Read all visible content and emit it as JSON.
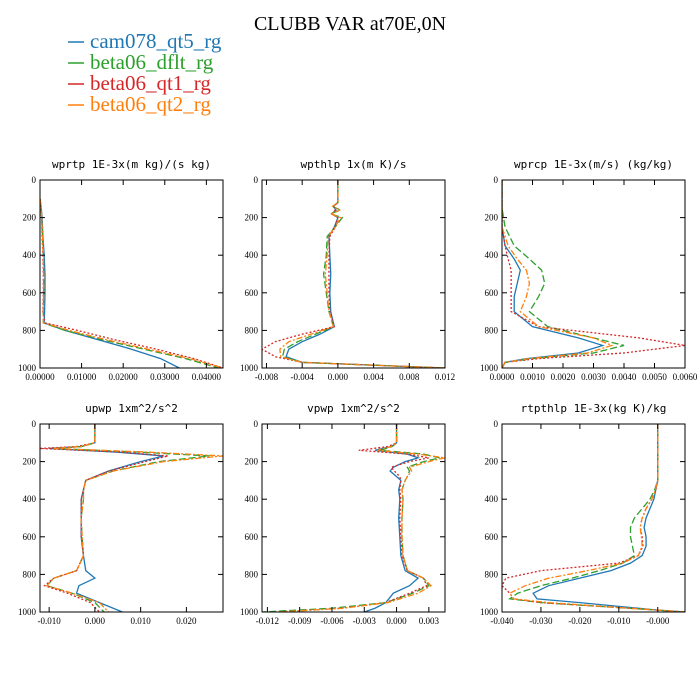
{
  "title": "CLUBB VAR at70E,0N",
  "legend": [
    {
      "name": "cam078_qt5_rg",
      "color": "#1f77b4"
    },
    {
      "name": "beta06_dflt_rg",
      "color": "#2ca02c"
    },
    {
      "name": "beta06_qt1_rg",
      "color": "#d62728"
    },
    {
      "name": "beta06_qt2_rg",
      "color": "#ff7f0e"
    }
  ],
  "chart_data": [
    {
      "type": "line",
      "title": "wprtp  1E-3x(m kg)/(s kg)",
      "xlim": [
        0,
        0.044
      ],
      "ylim": [
        1000,
        0
      ],
      "xticks": [
        0,
        0.01,
        0.02,
        0.03,
        0.04
      ],
      "xtick_labels": [
        "0.00000",
        "0.01000",
        "0.02000",
        "0.03000",
        "0.04000"
      ],
      "yticks": [
        0,
        200,
        400,
        600,
        800,
        1000
      ],
      "ytick_labels": [
        "0",
        "200",
        "400",
        "600",
        "800",
        "1000"
      ],
      "y": [
        100,
        150,
        200,
        300,
        400,
        500,
        600,
        700,
        760,
        800,
        850,
        900,
        950,
        1000
      ],
      "series": [
        {
          "name": "cam078_qt5_rg",
          "values": [
            0,
            0.0003,
            0.0005,
            0.0007,
            0.001,
            0.0012,
            0.0012,
            0.0011,
            0.001,
            0.006,
            0.014,
            0.022,
            0.029,
            0.0335
          ]
        },
        {
          "name": "beta06_dflt_rg",
          "values": [
            0,
            0.0003,
            0.0004,
            0.0006,
            0.0008,
            0.0009,
            0.0009,
            0.0008,
            0.0008,
            0.006,
            0.015,
            0.025,
            0.035,
            0.043
          ]
        },
        {
          "name": "beta06_qt1_rg",
          "values": [
            0,
            0.0002,
            0.0004,
            0.0005,
            0.0007,
            0.0008,
            0.0008,
            0.0007,
            0.0012,
            0.009,
            0.018,
            0.028,
            0.037,
            0.044
          ]
        },
        {
          "name": "beta06_qt2_rg",
          "values": [
            0,
            0.0003,
            0.0004,
            0.0006,
            0.0008,
            0.0009,
            0.0009,
            0.0008,
            0.0008,
            0.007,
            0.016,
            0.026,
            0.036,
            0.044
          ]
        }
      ]
    },
    {
      "type": "line",
      "title": "wpthlp  1x(m K)/s",
      "xlim": [
        -0.0085,
        0.012
      ],
      "ylim": [
        1000,
        0
      ],
      "xticks": [
        -0.008,
        -0.004,
        0,
        0.004,
        0.008,
        0.012
      ],
      "xtick_labels": [
        "-0.008",
        "-0.004",
        "0.000",
        "0.004",
        "0.008",
        "0.012"
      ],
      "yticks": [
        0,
        200,
        400,
        600,
        800,
        1000
      ],
      "ytick_labels": [
        "0",
        "200",
        "400",
        "600",
        "800",
        "1000"
      ],
      "y": [
        0,
        120,
        140,
        160,
        180,
        200,
        250,
        300,
        400,
        500,
        600,
        700,
        780,
        820,
        860,
        900,
        940,
        970,
        985,
        1000
      ],
      "series": [
        {
          "name": "cam078_qt5_rg",
          "values": [
            0,
            0,
            -0.0005,
            -0.0002,
            -0.0007,
            0,
            -0.0004,
            -0.001,
            -0.0009,
            -0.0008,
            -0.0009,
            -0.0008,
            -0.0004,
            -0.002,
            -0.004,
            -0.0055,
            -0.0058,
            -0.004,
            0.004,
            0.012
          ]
        },
        {
          "name": "beta06_dflt_rg",
          "values": [
            0,
            0,
            -0.0006,
            0.0003,
            -0.0008,
            0.0005,
            -0.0003,
            -0.0012,
            -0.0013,
            -0.0016,
            -0.0013,
            -0.001,
            -0.0005,
            -0.0025,
            -0.0045,
            -0.006,
            -0.0062,
            -0.004,
            0.004,
            0.012
          ]
        },
        {
          "name": "beta06_qt1_rg",
          "values": [
            0,
            0,
            -0.0005,
            -0.0003,
            -0.0007,
            0,
            -0.0003,
            -0.0009,
            -0.001,
            -0.001,
            -0.001,
            -0.0009,
            -0.0004,
            -0.004,
            -0.007,
            -0.0085,
            -0.007,
            -0.004,
            0.004,
            0.012
          ]
        },
        {
          "name": "beta06_qt2_rg",
          "values": [
            0,
            0,
            -0.0006,
            0.0002,
            -0.0008,
            0.0003,
            -0.0003,
            -0.0011,
            -0.0012,
            -0.0014,
            -0.0012,
            -0.001,
            -0.0005,
            -0.003,
            -0.0055,
            -0.0065,
            -0.0064,
            -0.004,
            0.004,
            0.012
          ]
        }
      ]
    },
    {
      "type": "line",
      "title": "wprcp  1E-3x(m/s) (kg/kg)",
      "xlim": [
        0,
        0.006
      ],
      "ylim": [
        1000,
        0
      ],
      "xticks": [
        0,
        0.001,
        0.002,
        0.003,
        0.004,
        0.005,
        0.006
      ],
      "xtick_labels": [
        "0.0000",
        "0.0010",
        "0.0020",
        "0.0030",
        "0.0040",
        "0.0050",
        "0.0060"
      ],
      "yticks": [
        0,
        200,
        400,
        600,
        800,
        1000
      ],
      "ytick_labels": [
        "0",
        "200",
        "400",
        "600",
        "800",
        "1000"
      ],
      "y": [
        0,
        150,
        250,
        350,
        420,
        480,
        550,
        620,
        700,
        780,
        840,
        880,
        920,
        950,
        970,
        1000
      ],
      "series": [
        {
          "name": "cam078_qt5_rg",
          "values": [
            0,
            0,
            0,
            0.0001,
            0.0004,
            0.0006,
            0.0005,
            0.0004,
            0.0004,
            0.001,
            0.0025,
            0.0033,
            0.0025,
            0.0008,
            0.0001,
            0
          ]
        },
        {
          "name": "beta06_dflt_rg",
          "values": [
            0,
            0,
            0.0001,
            0.0004,
            0.0009,
            0.0013,
            0.0014,
            0.0012,
            0.0009,
            0.0015,
            0.003,
            0.004,
            0.003,
            0.001,
            0.0001,
            0
          ]
        },
        {
          "name": "beta06_qt1_rg",
          "values": [
            0,
            0,
            0,
            0.0001,
            0.0002,
            0.0003,
            0.0003,
            0.0003,
            0.0003,
            0.0012,
            0.0045,
            0.006,
            0.004,
            0.0012,
            0.0001,
            0
          ]
        },
        {
          "name": "beta06_qt2_rg",
          "values": [
            0,
            0,
            0,
            0.0002,
            0.0005,
            0.0008,
            0.0009,
            0.0008,
            0.0006,
            0.0012,
            0.003,
            0.0036,
            0.0028,
            0.0009,
            0.0001,
            0
          ]
        }
      ]
    },
    {
      "type": "line",
      "title": "upwp  1xm^2/s^2",
      "xlim": [
        -0.012,
        0.028
      ],
      "ylim": [
        1000,
        0
      ],
      "xticks": [
        -0.01,
        0,
        0.01,
        0.02
      ],
      "xtick_labels": [
        "-0.010",
        "0.000",
        "0.010",
        "0.020"
      ],
      "yticks": [
        0,
        200,
        400,
        600,
        800,
        1000
      ],
      "ytick_labels": [
        "0",
        "200",
        "400",
        "600",
        "800",
        "1000"
      ],
      "y": [
        0,
        100,
        120,
        130,
        150,
        170,
        200,
        250,
        300,
        350,
        400,
        500,
        600,
        700,
        780,
        820,
        860,
        900,
        950,
        1000
      ],
      "series": [
        {
          "name": "cam078_qt5_rg",
          "values": [
            0,
            0,
            -0.003,
            -0.01,
            0.005,
            0.015,
            0.01,
            0.003,
            -0.002,
            -0.0025,
            -0.003,
            -0.003,
            -0.003,
            -0.0025,
            -0.002,
            0,
            -0.0035,
            -0.004,
            0.001,
            0.006
          ]
        },
        {
          "name": "beta06_dflt_rg",
          "values": [
            0,
            0,
            -0.003,
            -0.009,
            0.01,
            0.025,
            0.014,
            0.004,
            -0.002,
            -0.0025,
            -0.0025,
            -0.003,
            -0.0028,
            -0.0025,
            -0.004,
            -0.009,
            -0.0105,
            -0.005,
            0,
            0.002
          ]
        },
        {
          "name": "beta06_qt1_rg",
          "values": [
            0,
            0,
            -0.004,
            -0.012,
            0.006,
            0.016,
            0.011,
            0.003,
            -0.002,
            -0.0025,
            -0.003,
            -0.003,
            -0.003,
            -0.0025,
            -0.004,
            -0.009,
            -0.011,
            -0.006,
            -0.001,
            0.001
          ]
        },
        {
          "name": "beta06_qt2_rg",
          "values": [
            0,
            0,
            -0.003,
            -0.009,
            0.012,
            0.028,
            0.015,
            0.004,
            -0.002,
            -0.0025,
            -0.0025,
            -0.003,
            -0.0028,
            -0.0025,
            -0.004,
            -0.009,
            -0.0105,
            -0.005,
            0.001,
            0.003
          ]
        }
      ]
    },
    {
      "type": "line",
      "title": "vpwp  1xm^2/s^2",
      "xlim": [
        -0.0125,
        0.0045
      ],
      "ylim": [
        1000,
        0
      ],
      "xticks": [
        -0.012,
        -0.009,
        -0.006,
        -0.003,
        0,
        0.003
      ],
      "xtick_labels": [
        "-0.012",
        "-0.009",
        "-0.006",
        "-0.003",
        "0.000",
        "0.003"
      ],
      "yticks": [
        0,
        200,
        400,
        600,
        800,
        1000
      ],
      "ytick_labels": [
        "0",
        "200",
        "400",
        "600",
        "800",
        "1000"
      ],
      "y": [
        0,
        100,
        120,
        140,
        160,
        180,
        200,
        230,
        250,
        280,
        300,
        350,
        400,
        500,
        600,
        700,
        780,
        820,
        860,
        900,
        950,
        980,
        1000
      ],
      "series": [
        {
          "name": "cam078_qt5_rg",
          "values": [
            0,
            0,
            -0.0005,
            -0.002,
            0.001,
            0.002,
            0.0008,
            -0.0003,
            -0.0006,
            0,
            0.0004,
            0.0002,
            0.0003,
            0.0002,
            0.0003,
            0.0004,
            0.0008,
            0.002,
            0.0012,
            -0.0003,
            -0.001,
            -0.002,
            -0.003
          ]
        },
        {
          "name": "beta06_dflt_rg",
          "values": [
            0,
            0,
            -0.0004,
            -0.0015,
            0.0025,
            0.004,
            0.0025,
            0.001,
            0.0012,
            0.001,
            0.0008,
            0.0005,
            0.0006,
            0.0005,
            0.0005,
            0.0006,
            0.001,
            0.0025,
            0.003,
            0.0015,
            -0.001,
            -0.006,
            -0.0125
          ]
        },
        {
          "name": "beta06_qt1_rg",
          "values": [
            0,
            0,
            -0.0008,
            -0.0035,
            0.001,
            0.003,
            0.0012,
            -0.0005,
            -0.0002,
            0.0003,
            0.0004,
            0.0003,
            0.0004,
            0.0003,
            0.0004,
            0.0005,
            0.001,
            0.0025,
            0.0028,
            0.0012,
            -0.001,
            -0.005,
            -0.011
          ]
        },
        {
          "name": "beta06_qt2_rg",
          "values": [
            0,
            0,
            -0.0005,
            -0.0018,
            0.002,
            0.0045,
            0.003,
            0.0012,
            0.0014,
            0.001,
            0.0008,
            0.0005,
            0.0006,
            0.0005,
            0.0005,
            0.0006,
            0.001,
            0.0025,
            0.0032,
            0.002,
            -0.0008,
            -0.005,
            -0.011
          ]
        }
      ]
    },
    {
      "type": "line",
      "title": "rtpthlp  1E-3x(kg K)/kg",
      "xlim": [
        -0.04,
        0.007
      ],
      "ylim": [
        1000,
        0
      ],
      "xticks": [
        -0.04,
        -0.03,
        -0.02,
        -0.01,
        0
      ],
      "xtick_labels": [
        "-0.040",
        "-0.030",
        "-0.020",
        "-0.010",
        "-0.000"
      ],
      "yticks": [
        0,
        200,
        400,
        600,
        800,
        1000
      ],
      "ytick_labels": [
        "0",
        "200",
        "400",
        "600",
        "800",
        "1000"
      ],
      "y": [
        0,
        300,
        350,
        400,
        450,
        500,
        550,
        600,
        650,
        700,
        740,
        780,
        820,
        860,
        900,
        930,
        950,
        970,
        990,
        1000
      ],
      "series": [
        {
          "name": "cam078_qt5_rg",
          "values": [
            0,
            0,
            -0.0005,
            -0.001,
            -0.002,
            -0.003,
            -0.0035,
            -0.003,
            -0.003,
            -0.004,
            -0.007,
            -0.012,
            -0.02,
            -0.028,
            -0.032,
            -0.031,
            -0.02,
            -0.01,
            0,
            0.007
          ]
        },
        {
          "name": "beta06_dflt_rg",
          "values": [
            0,
            0,
            -0.0008,
            -0.002,
            -0.004,
            -0.006,
            -0.007,
            -0.007,
            -0.0065,
            -0.006,
            -0.009,
            -0.015,
            -0.022,
            -0.03,
            -0.036,
            -0.038,
            -0.03,
            -0.015,
            0,
            0.007
          ]
        },
        {
          "name": "beta06_qt1_rg",
          "values": [
            0,
            0,
            -0.0005,
            -0.0015,
            -0.003,
            -0.004,
            -0.0045,
            -0.004,
            -0.0038,
            -0.005,
            -0.01,
            -0.03,
            -0.039,
            -0.04,
            -0.038,
            -0.037,
            -0.03,
            -0.015,
            0,
            0.007
          ]
        },
        {
          "name": "beta06_qt2_rg",
          "values": [
            0,
            0,
            -0.0006,
            -0.0015,
            -0.003,
            -0.004,
            -0.0045,
            -0.0042,
            -0.004,
            -0.005,
            -0.009,
            -0.018,
            -0.028,
            -0.034,
            -0.038,
            -0.037,
            -0.028,
            -0.014,
            0,
            0.007
          ]
        }
      ]
    }
  ]
}
